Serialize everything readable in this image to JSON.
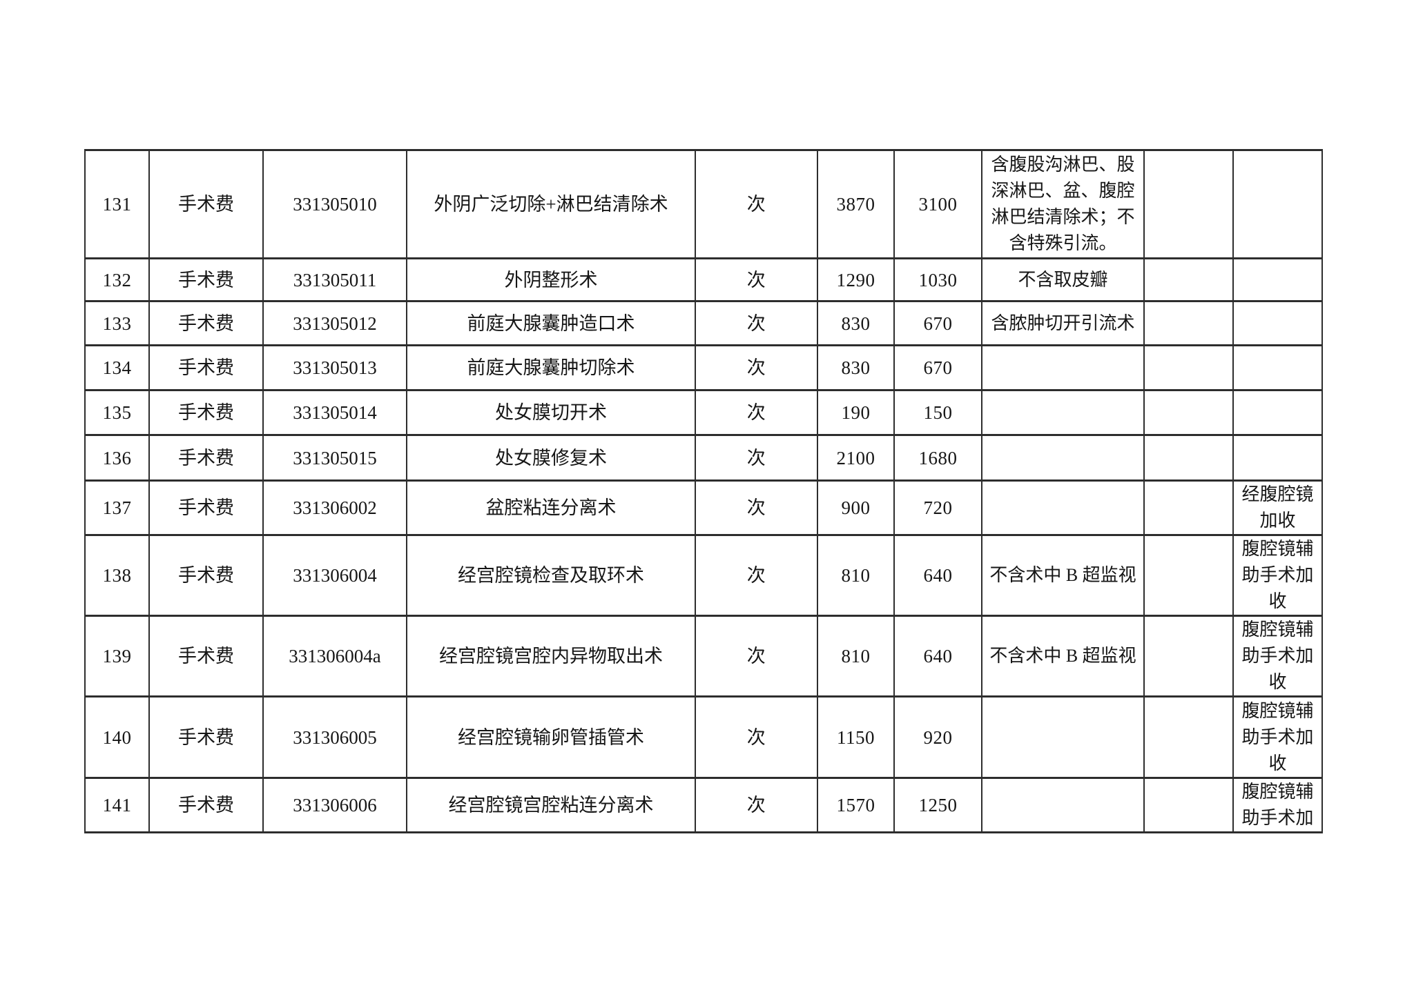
{
  "table": {
    "unit_label": "次",
    "category_label": "手术费",
    "rows": [
      {
        "no": "131",
        "category": "手术费",
        "code": "331305010",
        "name": "外阴广泛切除+淋巴结清除术",
        "unit": "次",
        "price_a": "3870",
        "price_b": "3100",
        "note": "含腹股沟淋巴、股深淋巴、盆、腹腔淋巴结清除术；不含特殊引流。",
        "extra": "",
        "addon": ""
      },
      {
        "no": "132",
        "category": "手术费",
        "code": "331305011",
        "name": "外阴整形术",
        "unit": "次",
        "price_a": "1290",
        "price_b": "1030",
        "note": "不含取皮瓣",
        "extra": "",
        "addon": ""
      },
      {
        "no": "133",
        "category": "手术费",
        "code": "331305012",
        "name": "前庭大腺囊肿造口术",
        "unit": "次",
        "price_a": "830",
        "price_b": "670",
        "note": "含脓肿切开引流术",
        "extra": "",
        "addon": ""
      },
      {
        "no": "134",
        "category": "手术费",
        "code": "331305013",
        "name": "前庭大腺囊肿切除术",
        "unit": "次",
        "price_a": "830",
        "price_b": "670",
        "note": "",
        "extra": "",
        "addon": ""
      },
      {
        "no": "135",
        "category": "手术费",
        "code": "331305014",
        "name": "处女膜切开术",
        "unit": "次",
        "price_a": "190",
        "price_b": "150",
        "note": "",
        "extra": "",
        "addon": ""
      },
      {
        "no": "136",
        "category": "手术费",
        "code": "331305015",
        "name": "处女膜修复术",
        "unit": "次",
        "price_a": "2100",
        "price_b": "1680",
        "note": "",
        "extra": "",
        "addon": ""
      },
      {
        "no": "137",
        "category": "手术费",
        "code": "331306002",
        "name": "盆腔粘连分离术",
        "unit": "次",
        "price_a": "900",
        "price_b": "720",
        "note": "",
        "extra": "",
        "addon": "经腹腔镜加收"
      },
      {
        "no": "138",
        "category": "手术费",
        "code": "331306004",
        "name": "经宫腔镜检查及取环术",
        "unit": "次",
        "price_a": "810",
        "price_b": "640",
        "note": "不含术中 B 超监视",
        "extra": "",
        "addon": "腹腔镜辅助手术加收"
      },
      {
        "no": "139",
        "category": "手术费",
        "code": "331306004a",
        "name": "经宫腔镜宫腔内异物取出术",
        "unit": "次",
        "price_a": "810",
        "price_b": "640",
        "note": "不含术中 B 超监视",
        "extra": "",
        "addon": "腹腔镜辅助手术加收"
      },
      {
        "no": "140",
        "category": "手术费",
        "code": "331306005",
        "name": "经宫腔镜输卵管插管术",
        "unit": "次",
        "price_a": "1150",
        "price_b": "920",
        "note": "",
        "extra": "",
        "addon": "腹腔镜辅助手术加收"
      },
      {
        "no": "141",
        "category": "手术费",
        "code": "331306006",
        "name": "经宫腔镜宫腔粘连分离术",
        "unit": "次",
        "price_a": "1570",
        "price_b": "1250",
        "note": "",
        "extra": "",
        "addon": "腹腔镜辅助手术加"
      }
    ]
  }
}
